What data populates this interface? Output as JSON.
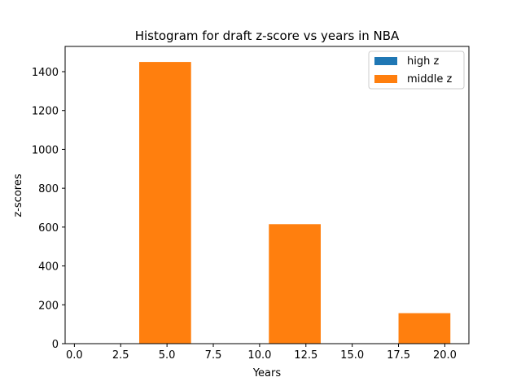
{
  "chart_data": {
    "type": "bar",
    "title": "Histogram for draft z-score vs years in NBA",
    "xlabel": "Years",
    "ylabel": "z-scores",
    "xlim": [
      -0.5,
      21.3
    ],
    "ylim": [
      0,
      1530
    ],
    "xticks": [
      0.0,
      2.5,
      5.0,
      7.5,
      10.0,
      12.5,
      15.0,
      17.5,
      20.0
    ],
    "xtick_labels": [
      "0.0",
      "2.5",
      "5.0",
      "7.5",
      "10.0",
      "12.5",
      "15.0",
      "17.5",
      "20.0"
    ],
    "yticks": [
      0,
      200,
      400,
      600,
      800,
      1000,
      1200,
      1400
    ],
    "ytick_labels": [
      "0",
      "200",
      "400",
      "600",
      "800",
      "1000",
      "1200",
      "1400"
    ],
    "grid": false,
    "legend_position": "top-right",
    "series": [
      {
        "name": "high z",
        "color": "#1f77b4",
        "bars": [
          {
            "x0": 3.5,
            "x1": 6.3,
            "value": 0
          },
          {
            "x0": 10.5,
            "x1": 13.3,
            "value": 0
          },
          {
            "x0": 17.5,
            "x1": 20.3,
            "value": 0
          }
        ]
      },
      {
        "name": "middle z",
        "color": "#ff7f0e",
        "bars": [
          {
            "x0": 3.5,
            "x1": 6.3,
            "value": 1450
          },
          {
            "x0": 10.5,
            "x1": 13.3,
            "value": 615
          },
          {
            "x0": 17.5,
            "x1": 20.3,
            "value": 157
          }
        ]
      }
    ]
  }
}
